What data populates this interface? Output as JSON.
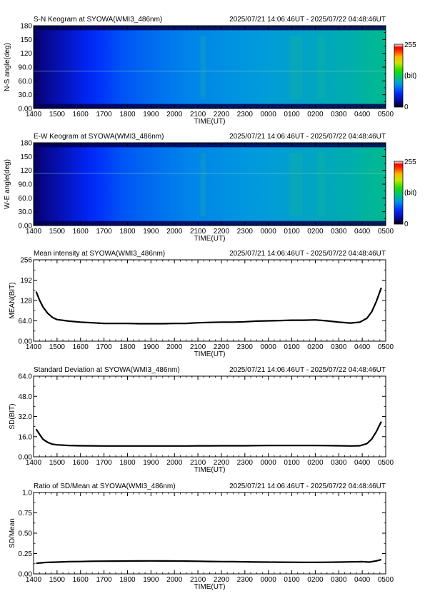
{
  "time_axis": {
    "ticks": [
      "1400",
      "1500",
      "1600",
      "1700",
      "1800",
      "1900",
      "2000",
      "2100",
      "2200",
      "2300",
      "0000",
      "0100",
      "0200",
      "0300",
      "0400",
      "0500"
    ],
    "label": "TIME(UT)"
  },
  "time_range": "2025/07/21 14:06:46UT - 2025/07/22 04:48:46UT",
  "colorbar": {
    "max": "255",
    "unit": "(bit)",
    "min": "0"
  },
  "chart_data": [
    {
      "type": "heatmap",
      "title": "S-N Keogram at SYOWA(WMI3_486nm)",
      "xlabel": "TIME(UT)",
      "ylabel": "N-S angle(deg)",
      "xlim": [
        "1400",
        "0500"
      ],
      "ylim": [
        0,
        180
      ],
      "ytick_labels": [
        "0.00",
        "30.0",
        "60.0",
        "90.0",
        "120",
        "150",
        "180"
      ],
      "colorscale": "rainbow 0-255 bit"
    },
    {
      "type": "heatmap",
      "title": "E-W Keogram at SYOWA(WMI3_486nm)",
      "xlabel": "TIME(UT)",
      "ylabel": "W-E angle(deg)",
      "xlim": [
        "1400",
        "0500"
      ],
      "ylim": [
        0,
        180
      ],
      "ytick_labels": [
        "0.00",
        "30.0",
        "60.0",
        "90.0",
        "120",
        "150",
        "180"
      ],
      "colorscale": "rainbow 0-255 bit"
    },
    {
      "type": "line",
      "title": "Mean intensity at SYOWA(WMI3_486nm)",
      "xlabel": "TIME(UT)",
      "ylabel": "MEAN(BIT)",
      "ylim": [
        0,
        256
      ],
      "ytick_labels": [
        "0.00",
        "64.0",
        "128",
        "192",
        "256"
      ],
      "x_hours": [
        14.11,
        14.25,
        14.4,
        14.6,
        14.8,
        15,
        15.5,
        16,
        16.5,
        17,
        17.5,
        18,
        18.5,
        19,
        19.5,
        20,
        20.5,
        21,
        21.5,
        22,
        22.5,
        23,
        23.5,
        24,
        24.5,
        25,
        25.5,
        26,
        26.5,
        27,
        27.5,
        27.9,
        28.2,
        28.4,
        28.6,
        28.81
      ],
      "values": [
        156,
        130,
        108,
        88,
        75,
        68,
        63,
        60,
        58,
        56,
        56,
        56,
        55,
        55,
        55,
        56,
        56,
        58,
        59,
        60,
        60,
        61,
        63,
        64,
        65,
        66,
        66,
        67,
        64,
        60,
        57,
        60,
        72,
        92,
        125,
        168
      ]
    },
    {
      "type": "line",
      "title": "Standard Deviation at SYOWA(WMI3_486nm)",
      "xlabel": "TIME(UT)",
      "ylabel": "SD(BIT)",
      "ylim": [
        0,
        64
      ],
      "ytick_labels": [
        "0.00",
        "16.0",
        "32.0",
        "48.0",
        "64.0"
      ],
      "x_hours": [
        14.11,
        14.25,
        14.4,
        14.6,
        14.8,
        15,
        15.5,
        16,
        16.5,
        17,
        17.5,
        18,
        18.5,
        19,
        19.5,
        20,
        20.5,
        21,
        21.5,
        22,
        22.5,
        23,
        23.5,
        24,
        24.5,
        25,
        25.5,
        26,
        26.5,
        27,
        27.5,
        27.9,
        28.2,
        28.4,
        28.6,
        28.81
      ],
      "values": [
        22,
        18,
        14,
        11.5,
        10,
        9.5,
        9,
        8.8,
        8.7,
        8.6,
        8.6,
        8.6,
        8.6,
        8.6,
        8.6,
        8.6,
        8.6,
        8.7,
        8.7,
        8.8,
        8.8,
        8.8,
        8.9,
        9,
        9,
        9,
        9,
        9,
        8.9,
        8.8,
        8.6,
        8.8,
        10.5,
        14,
        20,
        28
      ]
    },
    {
      "type": "line",
      "title": "Ratio of SD/Mean at SYOWA(WMI3_486nm)",
      "xlabel": "TIME(UT)",
      "ylabel": "SD/Mean",
      "ylim": [
        0,
        1
      ],
      "ytick_labels": [
        "0.00",
        "0.25",
        "0.50",
        "0.75",
        "1.0"
      ],
      "x_hours": [
        14.11,
        14.5,
        15,
        15.5,
        16,
        16.5,
        17,
        17.5,
        18,
        18.5,
        19,
        19.5,
        20,
        20.5,
        21,
        21.5,
        22,
        22.5,
        23,
        23.5,
        24,
        24.5,
        25,
        25.5,
        26,
        26.5,
        27,
        27.5,
        28,
        28.3,
        28.6,
        28.81
      ],
      "values": [
        0.13,
        0.14,
        0.145,
        0.15,
        0.152,
        0.155,
        0.156,
        0.157,
        0.158,
        0.159,
        0.16,
        0.159,
        0.158,
        0.157,
        0.155,
        0.153,
        0.151,
        0.15,
        0.148,
        0.146,
        0.145,
        0.144,
        0.143,
        0.142,
        0.142,
        0.143,
        0.145,
        0.147,
        0.15,
        0.145,
        0.16,
        0.175
      ]
    }
  ]
}
